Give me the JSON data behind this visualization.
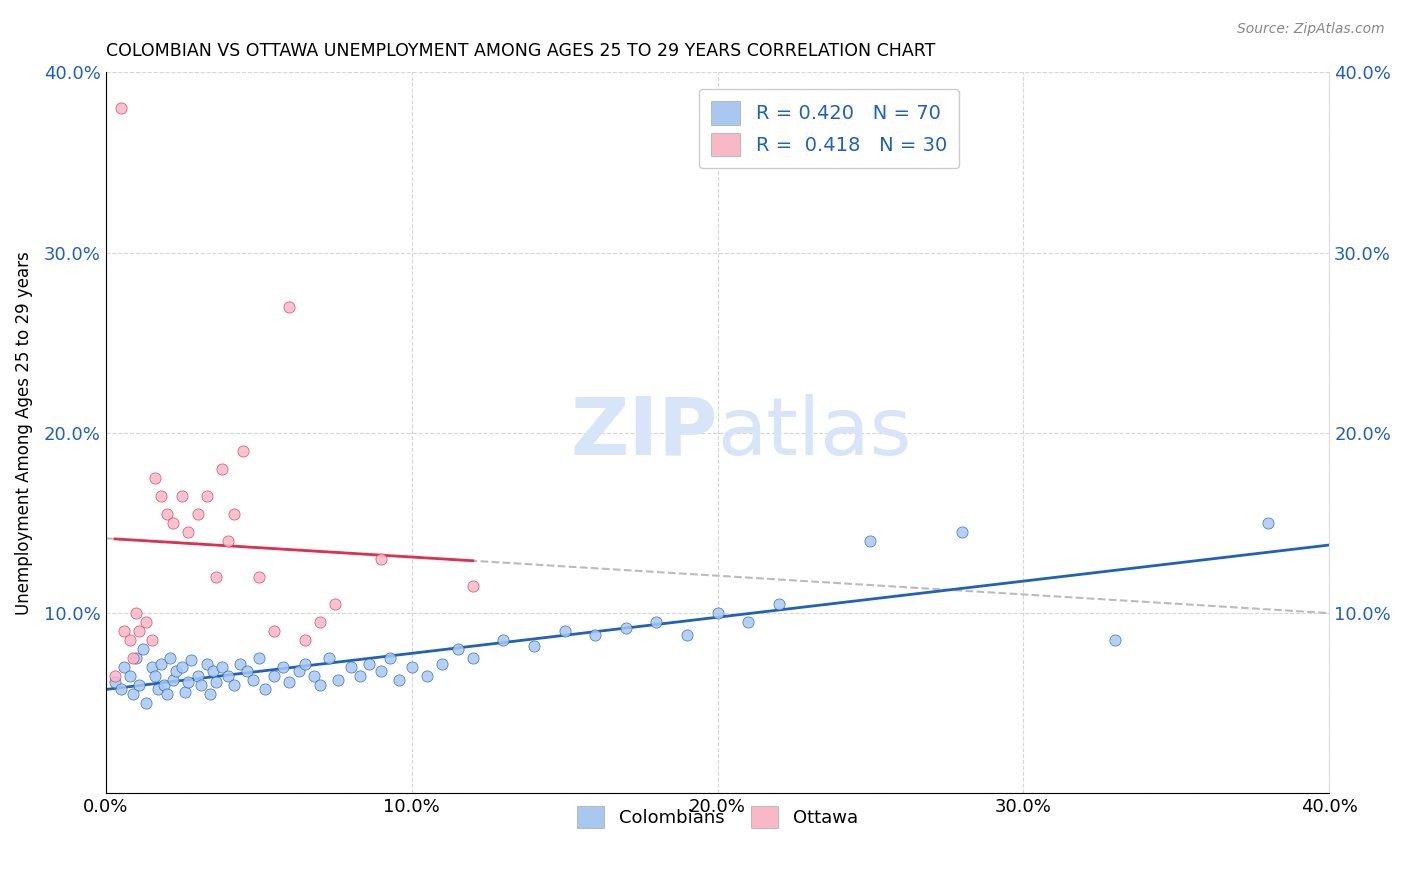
{
  "title": "COLOMBIAN VS OTTAWA UNEMPLOYMENT AMONG AGES 25 TO 29 YEARS CORRELATION CHART",
  "source": "Source: ZipAtlas.com",
  "ylabel": "Unemployment Among Ages 25 to 29 years",
  "xlim": [
    0.0,
    0.4
  ],
  "ylim": [
    0.0,
    0.4
  ],
  "xticks": [
    0.0,
    0.1,
    0.2,
    0.3,
    0.4
  ],
  "yticks": [
    0.0,
    0.1,
    0.2,
    0.3,
    0.4
  ],
  "colombian_color": "#A8C8F0",
  "ottawa_color": "#F8B8C8",
  "trendline_colombian_color": "#2060C0",
  "trendline_ottawa_color": "#E03050",
  "trendline_gray_color": "#BBBBBB",
  "watermark_color": "#D8E4F8",
  "legend_label1": "Colombians",
  "legend_label2": "Ottawa",
  "colombian_x": [
    0.003,
    0.005,
    0.006,
    0.008,
    0.009,
    0.01,
    0.011,
    0.012,
    0.013,
    0.015,
    0.016,
    0.017,
    0.018,
    0.019,
    0.02,
    0.021,
    0.022,
    0.023,
    0.025,
    0.026,
    0.027,
    0.028,
    0.03,
    0.031,
    0.033,
    0.034,
    0.035,
    0.036,
    0.038,
    0.04,
    0.042,
    0.044,
    0.046,
    0.048,
    0.05,
    0.052,
    0.055,
    0.058,
    0.06,
    0.063,
    0.065,
    0.068,
    0.07,
    0.073,
    0.076,
    0.08,
    0.083,
    0.086,
    0.09,
    0.093,
    0.096,
    0.1,
    0.105,
    0.11,
    0.115,
    0.12,
    0.13,
    0.14,
    0.15,
    0.16,
    0.17,
    0.18,
    0.19,
    0.2,
    0.21,
    0.22,
    0.25,
    0.28,
    0.33,
    0.38
  ],
  "colombian_y": [
    0.062,
    0.058,
    0.07,
    0.065,
    0.055,
    0.075,
    0.06,
    0.08,
    0.05,
    0.07,
    0.065,
    0.058,
    0.072,
    0.06,
    0.055,
    0.075,
    0.063,
    0.068,
    0.07,
    0.056,
    0.062,
    0.074,
    0.065,
    0.06,
    0.072,
    0.055,
    0.068,
    0.062,
    0.07,
    0.065,
    0.06,
    0.072,
    0.068,
    0.063,
    0.075,
    0.058,
    0.065,
    0.07,
    0.062,
    0.068,
    0.072,
    0.065,
    0.06,
    0.075,
    0.063,
    0.07,
    0.065,
    0.072,
    0.068,
    0.075,
    0.063,
    0.07,
    0.065,
    0.072,
    0.08,
    0.075,
    0.085,
    0.082,
    0.09,
    0.088,
    0.092,
    0.095,
    0.088,
    0.1,
    0.095,
    0.105,
    0.14,
    0.145,
    0.085,
    0.15
  ],
  "ottawa_x": [
    0.003,
    0.005,
    0.006,
    0.008,
    0.009,
    0.01,
    0.011,
    0.013,
    0.015,
    0.016,
    0.018,
    0.02,
    0.022,
    0.025,
    0.027,
    0.03,
    0.033,
    0.036,
    0.038,
    0.04,
    0.042,
    0.045,
    0.05,
    0.055,
    0.06,
    0.065,
    0.07,
    0.075,
    0.09,
    0.12
  ],
  "ottawa_y": [
    0.065,
    0.38,
    0.09,
    0.085,
    0.075,
    0.1,
    0.09,
    0.095,
    0.085,
    0.175,
    0.165,
    0.155,
    0.15,
    0.165,
    0.145,
    0.155,
    0.165,
    0.12,
    0.18,
    0.14,
    0.155,
    0.19,
    0.12,
    0.09,
    0.27,
    0.085,
    0.095,
    0.105,
    0.13,
    0.115
  ]
}
